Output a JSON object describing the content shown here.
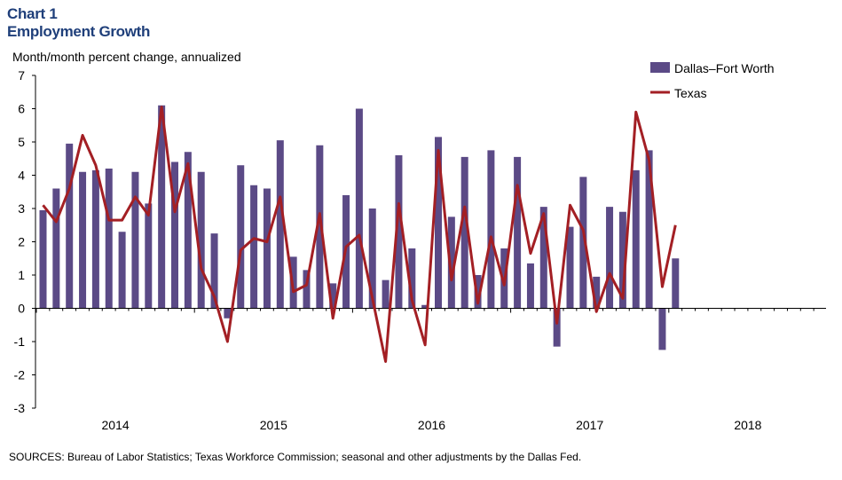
{
  "header": {
    "title": "Chart 1",
    "subtitle": "Employment Growth",
    "ylabel": "Month/month  percent change, annualized"
  },
  "footer": {
    "source": "SOURCES: Bureau of  Labor Statistics; Texas Workforce Commission; seasonal and other adjustments by the Dallas Fed."
  },
  "colors": {
    "bar": "#5b4a86",
    "line": "#a31f24",
    "title": "#1f3f7a"
  },
  "chart_data": {
    "type": "bar",
    "title": "Employment Growth",
    "ylabel": "Month/month  percent change, annualized",
    "xlabel": "",
    "ylim": [
      -3,
      7
    ],
    "yticks": [
      -3,
      -2,
      -1,
      0,
      1,
      2,
      3,
      4,
      5,
      6,
      7
    ],
    "xticks": [
      "2014",
      "2015",
      "2016",
      "2017",
      "2018"
    ],
    "grid": false,
    "legend_position": "top-right",
    "x_start": "2014-01",
    "series": [
      {
        "name": "Dallas–Fort Worth",
        "type": "bar",
        "values": [
          2.95,
          3.6,
          4.95,
          4.1,
          4.15,
          4.2,
          2.3,
          4.1,
          3.15,
          6.1,
          4.4,
          4.7,
          4.1,
          2.25,
          -0.3,
          4.3,
          3.7,
          3.6,
          5.05,
          1.55,
          1.15,
          4.9,
          0.75,
          3.4,
          6.0,
          3.0,
          0.85,
          4.6,
          1.8,
          0.1,
          5.15,
          2.75,
          4.55,
          1.0,
          4.75,
          1.8,
          4.55,
          1.35,
          3.05,
          -1.15,
          2.45,
          3.95,
          0.95,
          3.05,
          2.9,
          4.15,
          4.75,
          -1.25,
          1.5
        ]
      },
      {
        "name": "Texas",
        "type": "line",
        "values": [
          3.1,
          2.6,
          3.6,
          5.2,
          4.3,
          2.65,
          2.65,
          3.35,
          2.8,
          6.05,
          2.9,
          4.35,
          1.2,
          0.35,
          -1.0,
          1.75,
          2.1,
          2.0,
          3.35,
          0.5,
          0.7,
          2.85,
          -0.3,
          1.85,
          2.2,
          0.3,
          -1.6,
          3.15,
          0.25,
          -1.1,
          4.75,
          0.85,
          3.05,
          0.15,
          2.15,
          0.7,
          3.7,
          1.65,
          2.85,
          -0.45,
          3.1,
          2.35,
          -0.1,
          1.05,
          0.3,
          5.9,
          4.45,
          0.65,
          2.5
        ]
      }
    ]
  }
}
